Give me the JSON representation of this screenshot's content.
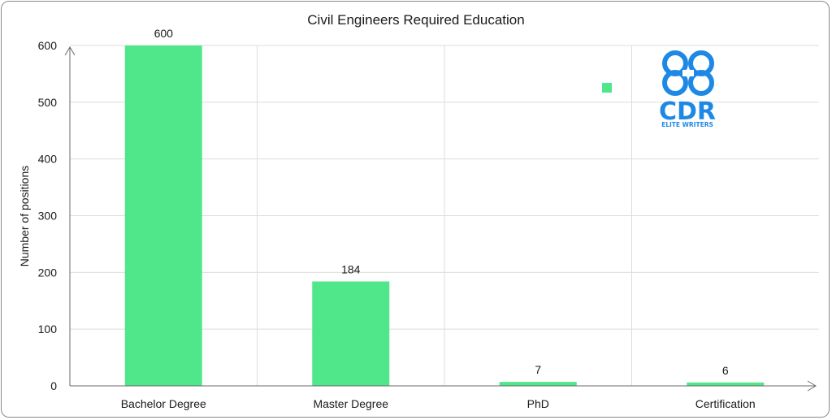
{
  "chart_data": {
    "type": "bar",
    "title": "Civil Engineers Required Education",
    "xlabel": "",
    "ylabel": "Number of positions",
    "categories": [
      "Bachelor Degree",
      "Master Degree",
      "PhD",
      "Certification"
    ],
    "values": [
      600,
      184,
      7,
      6
    ],
    "ylim": [
      0,
      600
    ],
    "yticks": [
      "0",
      "100",
      "200",
      "300",
      "400",
      "500",
      "600"
    ],
    "grid": true,
    "legend": "marker only, top-right",
    "bar_color": "#50e68a"
  },
  "logo": {
    "text": "CDR",
    "subtext": "ELITE WRITERS",
    "color": "#1e88e5"
  }
}
